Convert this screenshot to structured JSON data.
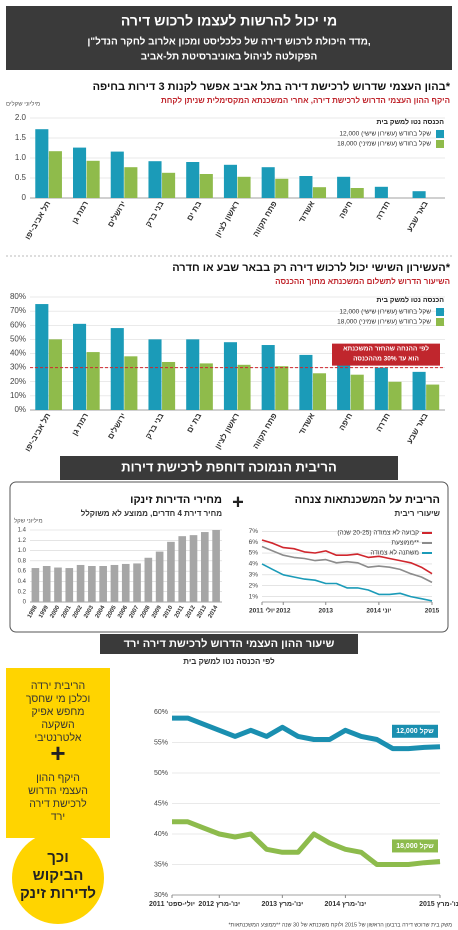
{
  "header": {
    "title": "מי יכול להרשות לעצמו לרכוש דירה",
    "subtitle_lines": [
      "מדד היכולת לרכוש דירה של כלכליסט ומכון אלרוב לחקר הנדל\"ן,",
      "הפקולטה לניהול באוניברסיטת תל-אביב"
    ]
  },
  "section_title": "הריבית הנמוכה דוחפת לרכישת דירות",
  "plus_sign": "+",
  "sidebar": {
    "lines_top": [
      "הריבית ירדה",
      "וכלכן מי שחסך",
      "מחפש אפיק",
      "השקעה",
      "אלטרנטיבי"
    ],
    "plus": "+",
    "lines_bottom": [
      "היקף ההון",
      "העצמי הדרוש",
      "לרכישת דירה",
      "ירד"
    ],
    "circle_lines": [
      "וכך",
      "הביקוש",
      "לדירות זינק"
    ]
  },
  "footnote": "*משק בית שרוכש דירה ברבעון הראשון של 2015 ולוקח משכנתא של 30 שנה **ממוצע המשכנתאות",
  "chart_data": [
    {
      "type": "bar",
      "title": "בהון העצמי שדרוש לרכישת דירה בתל אביב אפשר לקנות 3 דירות בחיפה*",
      "subtitle": "היקף ההון העצמי הדרוש לרכישת דירה, אחרי המשכנתא המקסימלית שניתן לקחת",
      "y_label": "מיליוני שקלים",
      "legend_title": "הכנסה נטו למשק בית",
      "categories": [
        "תל אביב-יפו",
        "רמת גן",
        "ירושלים",
        "בני ברק",
        "בת ים",
        "ראשון לציון",
        "פתח תקווה",
        "אשדוד",
        "חיפה",
        "חדרה",
        "באר שבע"
      ],
      "series": [
        {
          "name": "12,000 שקל בחודש (עשירון שישי)",
          "color": "#1b9bb8",
          "values": [
            1.72,
            1.26,
            1.16,
            0.92,
            0.9,
            0.83,
            0.77,
            0.55,
            0.53,
            0.28,
            0.17
          ]
        },
        {
          "name": "18,000 שקל בחודש (עשירון שמיני)",
          "color": "#8fbb4b",
          "values": [
            1.17,
            0.93,
            0.77,
            0.63,
            0.6,
            0.53,
            0.48,
            0.27,
            0.25,
            null,
            null
          ]
        }
      ],
      "ylim": [
        0,
        2
      ],
      "yticks": [
        0,
        0.5,
        {
          "value": 1,
          "label": "1.0"
        },
        1.5,
        {
          "value": 2,
          "label": "2.0"
        }
      ],
      "grid": true
    },
    {
      "type": "bar",
      "title": "העשירון השישי יכול לרכוש דירה רק בבאר שבע או חדרה*",
      "subtitle": "השיעור הדרוש לתשלום המשכנתא מתוך ההכנסה",
      "legend_title": "הכנסה נטו למשק בית",
      "categories": [
        "תל אביב-יפו",
        "רמת גן",
        "ירושלים",
        "בני ברק",
        "בת ים",
        "ראשון לציון",
        "פתח תקווה",
        "אשדוד",
        "חיפה",
        "חדרה",
        "באר שבע"
      ],
      "series": [
        {
          "name": "12,000 שקל בחודש (עשירון שישי)",
          "color": "#1b9bb8",
          "values": [
            75,
            61,
            58,
            50,
            50,
            48,
            46,
            39,
            38,
            30,
            27
          ]
        },
        {
          "name": "18,000 שקל בחודש (עשירון שמיני)",
          "color": "#8fbb4b",
          "values": [
            50,
            41,
            38,
            34,
            33,
            32,
            31,
            26,
            25,
            20,
            18
          ]
        }
      ],
      "threshold": 30,
      "annotation": [
        "לפי ההנחה שהחזר המשכנתא",
        "הוא עד 30% מההכנסה"
      ],
      "ylim": [
        0,
        80
      ],
      "yticks": [
        {
          "value": 0,
          "label": "0%"
        },
        {
          "value": 10,
          "label": "10%"
        },
        {
          "value": 20,
          "label": "20%"
        },
        {
          "value": 30,
          "label": "30%"
        },
        {
          "value": 40,
          "label": "40%"
        },
        {
          "value": 50,
          "label": "50%"
        },
        {
          "value": 60,
          "label": "60%"
        },
        {
          "value": 70,
          "label": "70%"
        },
        {
          "value": 80,
          "label": "80%"
        }
      ],
      "grid": true
    },
    {
      "type": "bar",
      "title": "מחירי הדירות זינקו",
      "subtitle": "מחיר דירת 4 חדרים, ממוצע לא משוקלל",
      "y_label": "מיליוני שקל",
      "categories": [
        "1998",
        "1999",
        "2000",
        "2001",
        "2002",
        "2003",
        "2004",
        "2005",
        "2006",
        "2007",
        "2008",
        "2009",
        "2010",
        "2011",
        "2012",
        "2013",
        "2014"
      ],
      "values": [
        0.66,
        0.7,
        0.67,
        0.66,
        0.72,
        0.7,
        0.7,
        0.72,
        0.74,
        0.75,
        0.86,
        0.98,
        1.17,
        1.28,
        1.3,
        1.36,
        1.4
      ],
      "color": "#a6a6a6",
      "ylim": [
        0,
        1.4
      ],
      "yticks": [
        0,
        0.2,
        0.4,
        0.6,
        0.8,
        {
          "value": 1,
          "label": "1.0"
        },
        1.2,
        1.4
      ],
      "grid": true
    },
    {
      "type": "line",
      "title": "הריבית על המשכנתאות צנחה",
      "subtitle": "שיעורי ריבית",
      "categories": [
        "יולי 2011",
        null,
        "2012",
        null,
        null,
        null,
        "2013",
        null,
        null,
        null,
        null,
        "יוני 2014",
        null,
        null,
        null,
        null,
        "2015"
      ],
      "series": [
        {
          "name": "קבועה לא צמודה (20-25 שנה)",
          "color": "#d0262d",
          "values": [
            6.2,
            5.9,
            5.5,
            5.4,
            5.1,
            5.0,
            5.2,
            4.8,
            4.8,
            4.9,
            4.6,
            4.7,
            4.5,
            4.3,
            4.1,
            3.7,
            3.1
          ]
        },
        {
          "name": "ממוצעת**",
          "color": "#8c8c8c",
          "values": [
            5.6,
            5.2,
            4.8,
            4.6,
            4.5,
            4.3,
            4.4,
            4.1,
            4.2,
            4.1,
            3.7,
            3.8,
            3.7,
            3.5,
            3.1,
            2.8,
            2.3
          ]
        },
        {
          "name": "משתנה לא צמודה",
          "color": "#1b9bb8",
          "values": [
            4.0,
            3.5,
            3.0,
            2.8,
            2.6,
            2.5,
            2.2,
            2.2,
            1.8,
            1.8,
            1.6,
            1.2,
            1.2,
            1.3,
            1.0,
            0.8,
            0.6
          ]
        }
      ],
      "ylim": [
        0.5,
        7.3
      ],
      "yticks": [
        {
          "value": 1,
          "label": "1%"
        },
        {
          "value": 2,
          "label": "2%"
        },
        {
          "value": 3,
          "label": "3%"
        },
        {
          "value": 4,
          "label": "4%"
        },
        {
          "value": 5,
          "label": "5%"
        },
        {
          "value": 6,
          "label": "6%"
        },
        {
          "value": 7,
          "label": "7%"
        }
      ],
      "grid": true
    },
    {
      "type": "line",
      "title": "שיעור ההון העצמי הדרוש לרכישת דירה ירד",
      "subtitle": "לפי הכנסה נטו למשק בית",
      "categories": [
        "יולי-ספט' 2011",
        null,
        null,
        "ינו'-מרץ 2012",
        null,
        null,
        null,
        "ינו'-מרץ 2013",
        null,
        null,
        null,
        "ינו'-מרץ 2014",
        null,
        null,
        null,
        null,
        null,
        "ינו'-מרץ 2015"
      ],
      "series": [
        {
          "name": "12,000 שקל",
          "color": "#1a8fb0",
          "values": [
            59,
            59,
            58,
            57,
            56,
            57,
            56,
            57.5,
            56,
            55.5,
            55.5,
            57,
            56,
            55.5,
            54,
            54,
            54.2,
            54.3
          ]
        },
        {
          "name": "18,000 שקל",
          "color": "#8dbb4c",
          "values": [
            42,
            42,
            41,
            40,
            39.5,
            40,
            37.5,
            37,
            37,
            40,
            38.5,
            37.5,
            37,
            35,
            35,
            35,
            35.3,
            35.5
          ]
        }
      ],
      "ylim": [
        30,
        60
      ],
      "yticks": [
        {
          "value": 30,
          "label": "30%"
        },
        {
          "value": 35,
          "label": "35%"
        },
        {
          "value": 40,
          "label": "40%"
        },
        {
          "value": 45,
          "label": "45%"
        },
        {
          "value": 50,
          "label": "50%"
        },
        {
          "value": 55,
          "label": "55%"
        },
        {
          "value": 60,
          "label": "60%"
        }
      ],
      "grid": true
    }
  ]
}
